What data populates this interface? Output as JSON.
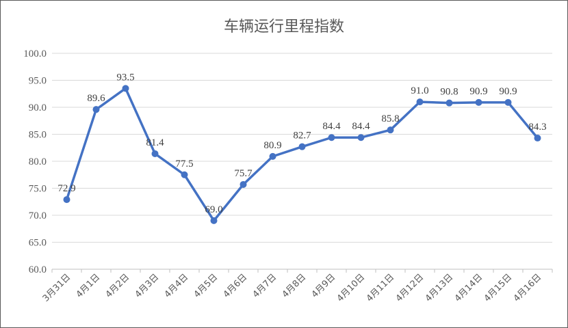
{
  "chart_data": {
    "type": "line",
    "title": "车辆运行里程指数",
    "xlabel": "",
    "ylabel": "",
    "ylim": [
      60,
      100
    ],
    "yticks": [
      "60.0",
      "65.0",
      "70.0",
      "75.0",
      "80.0",
      "85.0",
      "90.0",
      "95.0",
      "100.0"
    ],
    "categories": [
      "3月31日",
      "4月1日",
      "4月2日",
      "4月3日",
      "4月4日",
      "4月5日",
      "4月6日",
      "4月7日",
      "4月8日",
      "4月9日",
      "4月10日",
      "4月11日",
      "4月12日",
      "4月13日",
      "4月14日",
      "4月15日",
      "4月16日"
    ],
    "series": [
      {
        "values": [
          72.9,
          89.6,
          93.5,
          81.4,
          77.5,
          69.0,
          75.7,
          80.9,
          82.7,
          84.4,
          84.4,
          85.8,
          91.0,
          90.8,
          90.9,
          90.9,
          84.3
        ],
        "labels": [
          "72.9",
          "89.6",
          "93.5",
          "81.4",
          "77.5",
          "69.0",
          "75.7",
          "80.9",
          "82.7",
          "84.4",
          "84.4",
          "85.8",
          "91.0",
          "90.8",
          "90.9",
          "90.9",
          "84.3"
        ],
        "color": "#4472c4"
      }
    ],
    "grid": true,
    "legend": "none"
  }
}
